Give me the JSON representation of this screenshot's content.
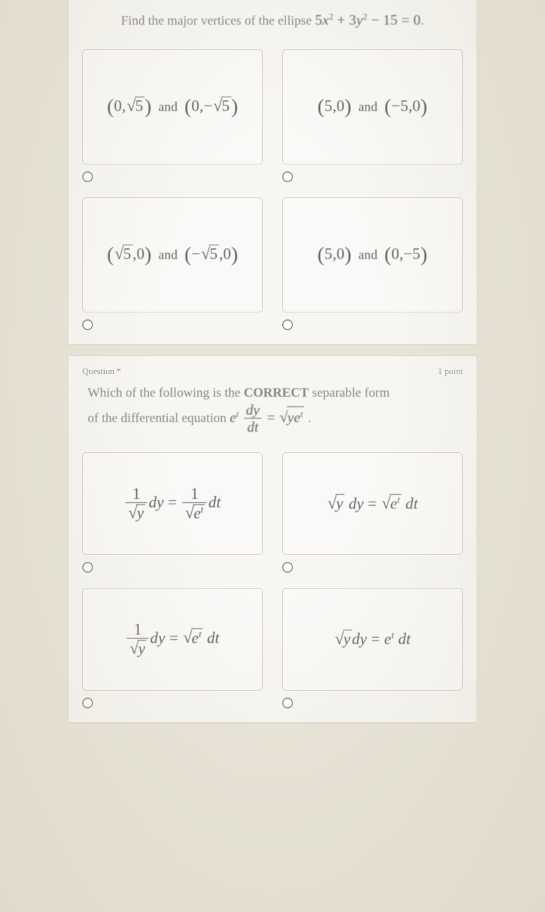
{
  "colors": {
    "page_bg": "#e8e4d8",
    "sheet_bg": "#f7f6f3",
    "box_border": "#d6d4ce",
    "text_body": "#6b6b6b",
    "text_math": "#636262",
    "text_meta": "#9a9a9a"
  },
  "question1": {
    "prompt_prefix": "Find the major vertices of the ellipse ",
    "prompt_equation": "5x² + 3y² − 15 = 0",
    "prompt_suffix": ".",
    "options": {
      "a": {
        "type": "point_pair",
        "p1": "(0, √5)",
        "p2": "(0, −√5)",
        "joiner": "and",
        "letter": ""
      },
      "b": {
        "type": "point_pair",
        "p1": "(5, 0)",
        "p2": "(−5, 0)",
        "joiner": "and",
        "letter": ""
      },
      "c": {
        "type": "point_pair",
        "p1": "(√5, 0)",
        "p2": "(−√5, 0)",
        "joiner": "and",
        "letter": ""
      },
      "d": {
        "type": "point_pair",
        "p1": "(5, 0)",
        "p2": "(0, −5)",
        "joiner": "and",
        "letter": ""
      }
    }
  },
  "question2": {
    "header_label": "Question",
    "header_points": "1 point",
    "prompt_line1": "Which of the following is the ",
    "prompt_bold": "CORRECT",
    "prompt_line1b": " separable form",
    "prompt_line2a": "of the differential equation ",
    "prompt_eq": "eᵗ (dy/dt) = √(y eᵗ)",
    "prompt_suffix": " .",
    "options": {
      "a": {
        "expr": "(1/√y) dy = (1/√(eᵗ)) dt",
        "letter": ""
      },
      "b": {
        "expr": "√y dy = √(eᵗ) dt",
        "letter": ""
      },
      "c": {
        "expr": "(1/√y) dy = √(eᵗ) dt",
        "letter": ""
      },
      "d": {
        "expr": "√y dy = eᵗ dt",
        "letter": ""
      }
    }
  }
}
